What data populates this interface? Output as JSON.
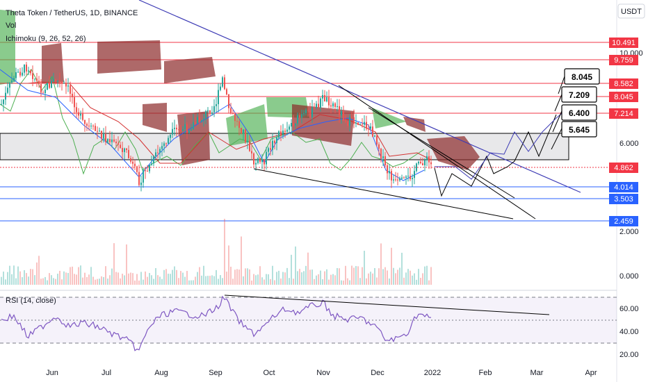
{
  "header": {
    "symbol": "Theta Token / TetherUS, 1D, BINANCE",
    "indicator_vol": "Vol",
    "indicator_ichimoku": "Ichimoku (9, 26, 52, 26)",
    "currency": "USDT"
  },
  "rsi": {
    "label": "RSI (14, close)"
  },
  "colors": {
    "resistance": "#f23645",
    "support": "#2962ff",
    "cloud_bear": "#8b2a2a",
    "cloud_bull": "#4caf50",
    "trendline": "#3d3bb5",
    "rsi_line": "#7e57c2"
  },
  "chart_data": {
    "type": "line",
    "title": "Theta Token / TetherUS, 1D, BINANCE",
    "x_ticks": [
      "Jun",
      "Jul",
      "Aug",
      "Sep",
      "Oct",
      "Nov",
      "Dec",
      "2022",
      "Feb",
      "Mar",
      "Apr"
    ],
    "y_ticks": [
      "10.000",
      "6.000",
      "2.000",
      "0.000"
    ],
    "price_levels": [
      {
        "value": "10.491",
        "kind": "resistance"
      },
      {
        "value": "9.759",
        "kind": "resistance"
      },
      {
        "value": "8.582",
        "kind": "resistance"
      },
      {
        "value": "8.045",
        "kind": "resistance"
      },
      {
        "value": "7.214",
        "kind": "resistance"
      },
      {
        "value": "4.862",
        "kind": "current"
      },
      {
        "value": "4.014",
        "kind": "support"
      },
      {
        "value": "3.503",
        "kind": "support"
      },
      {
        "value": "2.459",
        "kind": "support"
      }
    ],
    "targets": [
      "8.045",
      "7.209",
      "6.400",
      "5.645"
    ],
    "rsi_ticks": [
      "60.00",
      "40.00",
      "20.00"
    ],
    "rsi_levels": [
      70,
      50,
      30
    ]
  }
}
